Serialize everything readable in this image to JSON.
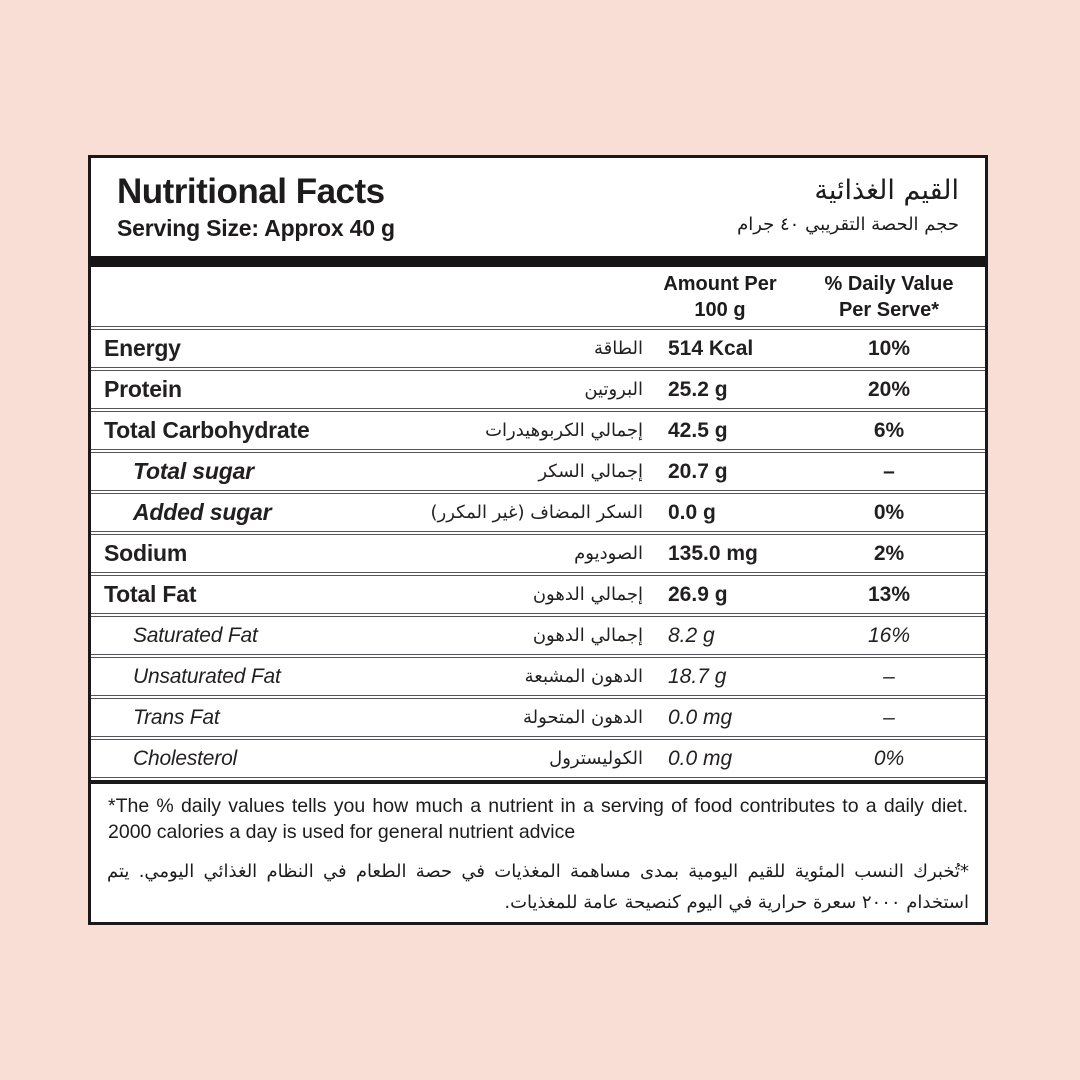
{
  "colors": {
    "background": "#f9ded5",
    "panel": "#ffffff",
    "text": "#1d1b1c",
    "bar": "#171415",
    "row_line": "#54555a"
  },
  "header": {
    "title_en": "Nutritional Facts",
    "serving_en": "Serving Size: Approx 40 g",
    "title_ar": "القيم الغذائية",
    "serving_ar": "حجم الحصة التقريبي ٤٠ جرام"
  },
  "columns": {
    "amount_line1": "Amount Per",
    "amount_line2": "100 g",
    "dv_line1": "% Daily Value",
    "dv_line2": "Per Serve*"
  },
  "rows": [
    {
      "en": "Energy",
      "ar": "الطاقة",
      "amount": "514 Kcal",
      "dv": "10%"
    },
    {
      "en": "Protein",
      "ar": "البروتين",
      "amount": "25.2 g",
      "dv": "20%"
    },
    {
      "en": "Total Carbohydrate",
      "ar": "إجمالي الكربوهيدرات",
      "amount": "42.5 g",
      "dv": "6%"
    },
    {
      "en": "Total sugar",
      "ar": "إجمالي السكر",
      "amount": "20.7 g",
      "dv": "–"
    },
    {
      "en": "Added sugar",
      "ar": "السكر المضاف (غير المكرر)",
      "amount": "0.0 g",
      "dv": "0%"
    },
    {
      "en": "Sodium",
      "ar": "الصوديوم",
      "amount": "135.0 mg",
      "dv": "2%"
    },
    {
      "en": "Total Fat",
      "ar": "إجمالي الدهون",
      "amount": "26.9 g",
      "dv": "13%"
    },
    {
      "en": "Saturated Fat",
      "ar": "إجمالي الدهون",
      "amount": "8.2 g",
      "dv": "16%"
    },
    {
      "en": "Unsaturated Fat",
      "ar": "الدهون المشبعة",
      "amount": "18.7 g",
      "dv": "–"
    },
    {
      "en": "Trans Fat",
      "ar": "الدهون المتحولة",
      "amount": "0.0 mg",
      "dv": "–"
    },
    {
      "en": "Cholesterol",
      "ar": "الكوليسترول",
      "amount": "0.0 mg",
      "dv": "0%"
    }
  ],
  "footnotes": {
    "en": "*The % daily values tells you how much a nutrient in a serving of food contributes to a daily diet. 2000 calories a day is used for general nutrient advice",
    "ar": "*تُخبرك النسب المئوية للقيم اليومية بمدى مساهمة المغذيات في حصة الطعام في النظام الغذائي اليومي. يتم استخدام ٢٠٠٠ سعرة حرارية في اليوم كنصيحة عامة للمغذيات."
  }
}
